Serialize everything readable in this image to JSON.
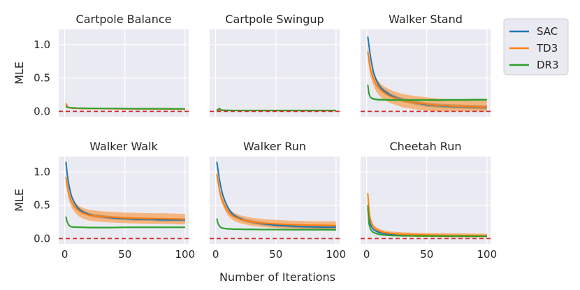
{
  "chart_data": {
    "type": "line",
    "xlabel": "Number of Iterations",
    "ylabel": "MLE",
    "xlim": [
      -5,
      103
    ],
    "ylim": [
      -0.08,
      1.23
    ],
    "xticks": [
      0,
      50,
      100
    ],
    "yticks": [
      0.0,
      0.5,
      1.0
    ],
    "xtick_labels": [
      "0",
      "50",
      "100"
    ],
    "ytick_labels": [
      "0.0",
      "0.5",
      "1.0"
    ],
    "reference_line": 0,
    "legend": {
      "placement": "outside-right",
      "entries": [
        {
          "name": "SAC",
          "color": "#1f77b4"
        },
        {
          "name": "TD3",
          "color": "#ff7f0e"
        },
        {
          "name": "DR3",
          "color": "#2ca02c"
        }
      ]
    },
    "colors": {
      "panel_bg": "#eaeaf2",
      "grid": "#ffffff",
      "reference": "#d62728"
    },
    "x": [
      1,
      2,
      3,
      4,
      5,
      6,
      8,
      10,
      12,
      15,
      20,
      25,
      30,
      40,
      50,
      60,
      70,
      80,
      90,
      100
    ],
    "panels": [
      {
        "title": "Cartpole Balance",
        "series": [
          {
            "name": "SAC",
            "values": [
              0.09,
              0.07,
              0.06,
              0.055,
              0.052,
              0.05,
              0.048,
              0.046,
              0.045,
              0.044,
              0.043,
              0.042,
              0.041,
              0.04,
              0.039,
              0.038,
              0.037,
              0.036,
              0.036,
              0.035
            ],
            "band": 0.006
          },
          {
            "name": "TD3",
            "values": [
              0.12,
              0.08,
              0.06,
              0.055,
              0.05,
              0.048,
              0.046,
              0.045,
              0.044,
              0.043,
              0.042,
              0.041,
              0.04,
              0.039,
              0.038,
              0.037,
              0.036,
              0.035,
              0.034,
              0.034
            ],
            "band": 0.01
          },
          {
            "name": "DR3",
            "values": [
              0.07,
              0.062,
              0.058,
              0.056,
              0.055,
              0.054,
              0.052,
              0.05,
              0.049,
              0.048,
              0.046,
              0.045,
              0.044,
              0.043,
              0.042,
              0.041,
              0.04,
              0.039,
              0.038,
              0.037
            ],
            "band": 0.005
          }
        ]
      },
      {
        "title": "Cartpole Swingup",
        "series": [
          {
            "name": "SAC",
            "values": [
              0.02,
              0.03,
              0.025,
              0.02,
              0.018,
              0.016,
              0.015,
              0.015,
              0.014,
              0.014,
              0.013,
              0.013,
              0.013,
              0.012,
              0.012,
              0.012,
              0.012,
              0.012,
              0.012,
              0.012
            ],
            "band": 0.004
          },
          {
            "name": "TD3",
            "values": [
              0.01,
              0.02,
              0.02,
              0.018,
              0.016,
              0.015,
              0.014,
              0.014,
              0.013,
              0.013,
              0.013,
              0.012,
              0.012,
              0.012,
              0.012,
              0.012,
              0.012,
              0.012,
              0.012,
              0.012
            ],
            "band": 0.004
          },
          {
            "name": "DR3",
            "values": [
              0.01,
              0.025,
              0.045,
              0.03,
              0.02,
              0.018,
              0.016,
              0.015,
              0.015,
              0.014,
              0.014,
              0.014,
              0.014,
              0.014,
              0.014,
              0.014,
              0.014,
              0.014,
              0.014,
              0.014
            ],
            "band": 0.004
          }
        ]
      },
      {
        "title": "Walker Stand",
        "series": [
          {
            "name": "SAC",
            "values": [
              1.12,
              0.98,
              0.85,
              0.74,
              0.65,
              0.57,
              0.47,
              0.4,
              0.35,
              0.3,
              0.24,
              0.2,
              0.17,
              0.13,
              0.1,
              0.085,
              0.075,
              0.07,
              0.065,
              0.06
            ],
            "band": 0.03
          },
          {
            "name": "TD3",
            "values": [
              0.9,
              0.76,
              0.64,
              0.58,
              0.52,
              0.48,
              0.4,
              0.35,
              0.31,
              0.27,
              0.22,
              0.19,
              0.16,
              0.13,
              0.11,
              0.09,
              0.08,
              0.075,
              0.07,
              0.065
            ],
            "band": 0.1
          },
          {
            "name": "DR3",
            "values": [
              0.4,
              0.26,
              0.22,
              0.2,
              0.19,
              0.185,
              0.18,
              0.175,
              0.175,
              0.175,
              0.17,
              0.17,
              0.17,
              0.17,
              0.17,
              0.17,
              0.172,
              0.172,
              0.174,
              0.175
            ],
            "band": 0.015
          }
        ]
      },
      {
        "title": "Walker Walk",
        "series": [
          {
            "name": "SAC",
            "values": [
              1.15,
              0.98,
              0.85,
              0.76,
              0.68,
              0.62,
              0.54,
              0.48,
              0.44,
              0.4,
              0.36,
              0.34,
              0.33,
              0.31,
              0.3,
              0.29,
              0.29,
              0.28,
              0.28,
              0.28
            ],
            "band": 0.025
          },
          {
            "name": "TD3",
            "values": [
              0.92,
              0.8,
              0.7,
              0.63,
              0.58,
              0.54,
              0.48,
              0.44,
              0.41,
              0.38,
              0.35,
              0.34,
              0.33,
              0.32,
              0.31,
              0.305,
              0.3,
              0.3,
              0.295,
              0.29
            ],
            "band": 0.08
          },
          {
            "name": "DR3",
            "values": [
              0.33,
              0.25,
              0.21,
              0.19,
              0.18,
              0.175,
              0.17,
              0.17,
              0.17,
              0.168,
              0.165,
              0.165,
              0.165,
              0.165,
              0.168,
              0.168,
              0.168,
              0.168,
              0.168,
              0.168
            ],
            "band": 0.012
          }
        ]
      },
      {
        "title": "Walker Run",
        "series": [
          {
            "name": "SAC",
            "values": [
              1.15,
              1.02,
              0.9,
              0.8,
              0.72,
              0.65,
              0.55,
              0.47,
              0.41,
              0.35,
              0.3,
              0.27,
              0.25,
              0.22,
              0.2,
              0.19,
              0.18,
              0.175,
              0.17,
              0.17
            ],
            "band": 0.025
          },
          {
            "name": "TD3",
            "values": [
              0.97,
              0.85,
              0.74,
              0.66,
              0.6,
              0.55,
              0.47,
              0.41,
              0.37,
              0.33,
              0.29,
              0.27,
              0.25,
              0.23,
              0.22,
              0.21,
              0.205,
              0.2,
              0.2,
              0.195
            ],
            "band": 0.06
          },
          {
            "name": "DR3",
            "values": [
              0.3,
              0.22,
              0.19,
              0.17,
              0.16,
              0.155,
              0.15,
              0.145,
              0.145,
              0.14,
              0.14,
              0.138,
              0.137,
              0.135,
              0.135,
              0.134,
              0.133,
              0.133,
              0.132,
              0.13
            ],
            "band": 0.012
          }
        ]
      },
      {
        "title": "Cheetah Run",
        "series": [
          {
            "name": "SAC",
            "values": [
              0.45,
              0.3,
              0.22,
              0.18,
              0.15,
              0.13,
              0.11,
              0.095,
              0.085,
              0.075,
              0.065,
              0.058,
              0.053,
              0.048,
              0.045,
              0.043,
              0.042,
              0.041,
              0.04,
              0.04
            ],
            "band": 0.015
          },
          {
            "name": "TD3",
            "values": [
              0.68,
              0.42,
              0.3,
              0.24,
              0.2,
              0.17,
              0.14,
              0.12,
              0.105,
              0.09,
              0.078,
              0.07,
              0.064,
              0.058,
              0.054,
              0.051,
              0.049,
              0.047,
              0.046,
              0.045
            ],
            "band": 0.03
          },
          {
            "name": "DR3",
            "values": [
              0.5,
              0.22,
              0.15,
              0.12,
              0.1,
              0.09,
              0.075,
              0.065,
              0.058,
              0.052,
              0.046,
              0.043,
              0.041,
              0.039,
              0.038,
              0.037,
              0.036,
              0.036,
              0.035,
              0.035
            ],
            "band": 0.012
          }
        ]
      }
    ]
  }
}
